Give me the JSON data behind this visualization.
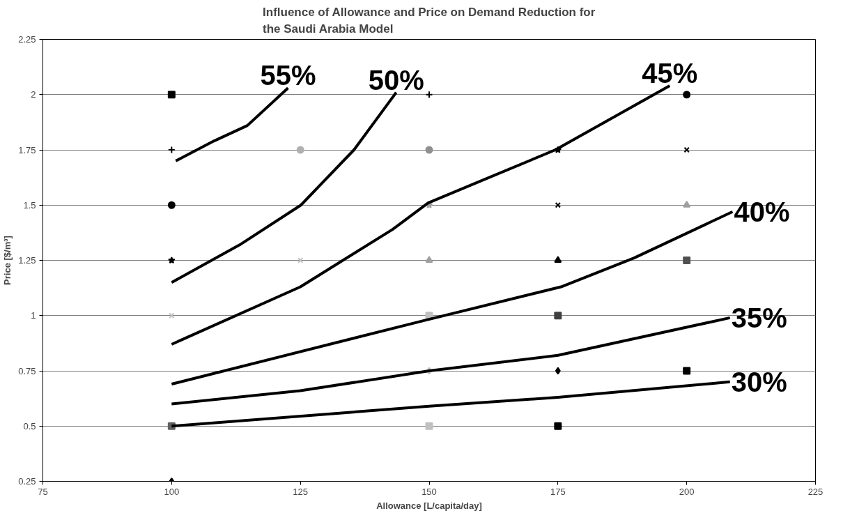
{
  "chart_data": {
    "type": "line",
    "title": "Influence of Allowance and Price on Demand Reduction for\nthe Saudi Arabia Model",
    "xlabel": "Allowance [L/capita/day]",
    "ylabel": "Price [$/m³]",
    "xlim": [
      75,
      225
    ],
    "xticks": [
      75,
      100,
      125,
      150,
      175,
      200,
      225
    ],
    "ylim": [
      0.25,
      2.25
    ],
    "yticks": [
      0.25,
      0.5,
      0.75,
      1,
      1.25,
      1.5,
      1.75,
      2,
      2.25
    ],
    "grid": "y",
    "line_style": "solid",
    "series": [
      {
        "type": "scatter",
        "marker": "circle",
        "x": [
          100,
          125,
          150,
          200
        ],
        "values": [
          1.5,
          1.75,
          1.75,
          2.0
        ],
        "colors": [
          "#000000",
          "#b0b0b0",
          "#909090",
          "#000000"
        ]
      },
      {
        "type": "scatter",
        "marker": "cross",
        "x": [
          100,
          150
        ],
        "values": [
          1.75,
          2.0
        ],
        "colors": [
          "#000000",
          "#000000"
        ]
      },
      {
        "type": "scatter",
        "marker": "x",
        "x": [
          100,
          125,
          175,
          200
        ],
        "values": [
          1.0,
          1.25,
          1.5,
          1.75
        ],
        "colors": [
          "#c0c0c0",
          "#c0c0c0",
          "#000000",
          "#000000"
        ]
      },
      {
        "type": "scatter",
        "marker": "star",
        "x": [
          100,
          150,
          175
        ],
        "values": [
          1.25,
          1.5,
          1.75
        ],
        "colors": [
          "#000000",
          "#a0a0a0",
          "#000000"
        ]
      },
      {
        "type": "scatter",
        "marker": "triangle",
        "x": [
          150,
          175,
          200
        ],
        "values": [
          1.25,
          1.25,
          1.5
        ],
        "colors": [
          "#a0a0a0",
          "#000000",
          "#a0a0a0"
        ]
      },
      {
        "type": "scatter",
        "marker": "square",
        "x": [
          100,
          150,
          175,
          200
        ],
        "values": [
          0.5,
          1.0,
          1.0,
          1.25
        ],
        "colors": [
          "#606060",
          "#c0c0c0",
          "#404040",
          "#505050"
        ]
      },
      {
        "type": "scatter",
        "marker": "diamond",
        "x": [
          100,
          150,
          175
        ],
        "values": [
          0.25,
          0.75,
          0.75
        ],
        "colors": [
          "#000000",
          "#c0c0c0",
          "#000000"
        ]
      },
      {
        "type": "scatter",
        "marker": "square",
        "x": [
          100,
          150,
          175,
          200
        ],
        "values": [
          2.0,
          0.5,
          0.5,
          0.75
        ],
        "colors": [
          "#000000",
          "#c0c0c0",
          "#000000",
          "#000000"
        ]
      },
      {
        "name": "55%",
        "color": "#000000",
        "x": [
          100.8,
          108.2,
          114.7,
          122.6
        ],
        "values": [
          1.7,
          1.79,
          1.86,
          2.03
        ]
      },
      {
        "name": "50%",
        "color": "#000000",
        "x": [
          100,
          113.2,
          125.1,
          135.4,
          143.6
        ],
        "values": [
          1.15,
          1.32,
          1.5,
          1.75,
          2.01
        ]
      },
      {
        "name": "45%",
        "color": "#000000",
        "x": [
          100,
          125,
          142.9,
          149.8,
          174.5,
          196.7
        ],
        "values": [
          0.87,
          1.13,
          1.39,
          1.51,
          1.75,
          2.04
        ]
      },
      {
        "name": "40%",
        "color": "#000000",
        "x": [
          100,
          149.4,
          175.6,
          189.7,
          208.9
        ],
        "values": [
          0.69,
          0.98,
          1.13,
          1.26,
          1.47
        ]
      },
      {
        "name": "35%",
        "color": "#000000",
        "x": [
          100,
          125,
          150,
          175,
          208.4
        ],
        "values": [
          0.6,
          0.66,
          0.75,
          0.82,
          0.99
        ]
      },
      {
        "name": "30%",
        "color": "#000000",
        "x": [
          100,
          150,
          175,
          208.4
        ],
        "values": [
          0.5,
          0.59,
          0.63,
          0.7
        ]
      }
    ]
  }
}
